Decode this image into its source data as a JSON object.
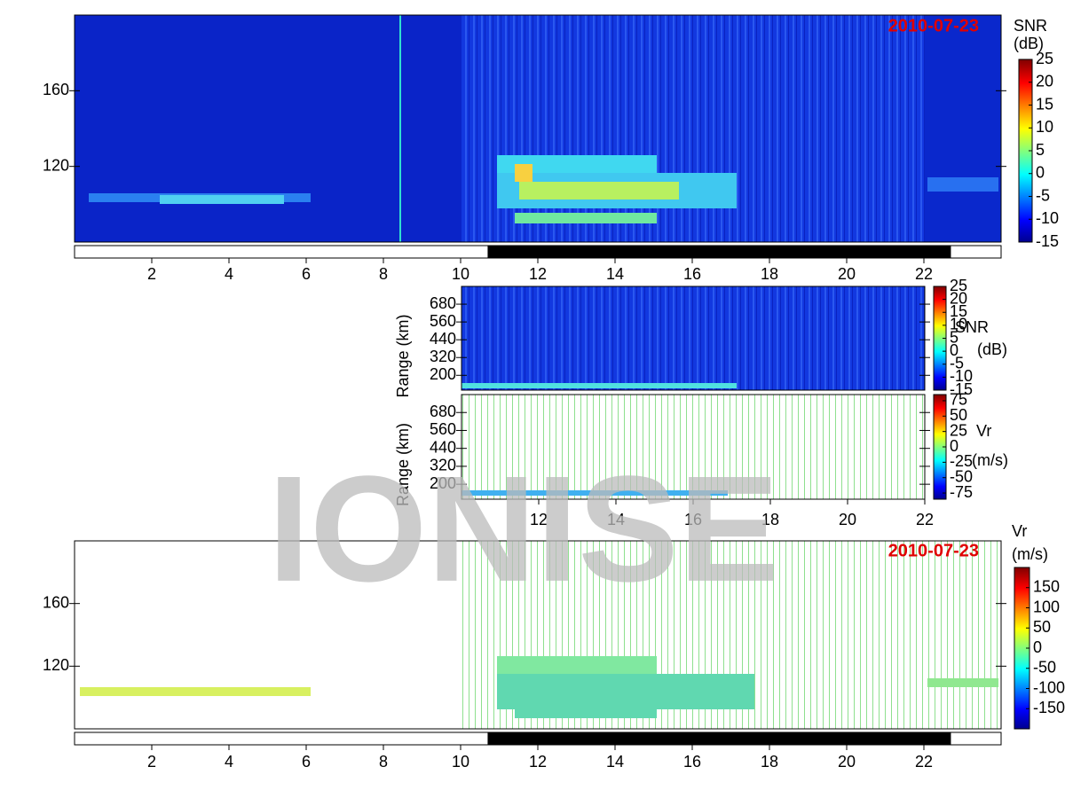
{
  "chart_data": [
    {
      "type": "heatmap",
      "title": "2010-07-23",
      "xlim": [
        0,
        24
      ],
      "xticks": [
        2,
        4,
        6,
        8,
        10,
        12,
        14,
        16,
        18,
        20,
        22
      ],
      "ylim": [
        80,
        200
      ],
      "yticks": [
        120,
        160
      ],
      "night": [
        10.7,
        22.7
      ],
      "colorbar": {
        "label": "SNR",
        "unit": "(dB)",
        "lim": [
          -15,
          25
        ],
        "ticks": [
          25,
          20,
          15,
          10,
          5,
          0,
          -5,
          -10,
          -15
        ]
      }
    },
    {
      "type": "heatmap",
      "xlim": [
        10,
        22
      ],
      "ylim": [
        100,
        800
      ],
      "yticks": [
        200,
        320,
        440,
        560,
        680
      ],
      "ylabel": "Range (km)",
      "colorbar": {
        "label": "SNR",
        "unit": "(dB)",
        "lim": [
          -15,
          25
        ],
        "ticks": [
          25,
          20,
          15,
          10,
          5,
          0,
          -5,
          -10,
          -15
        ]
      }
    },
    {
      "type": "heatmap",
      "xlim": [
        10,
        22
      ],
      "xticks": [
        12,
        14,
        16,
        18,
        20,
        22
      ],
      "ylim": [
        100,
        800
      ],
      "yticks": [
        200,
        320,
        440,
        560,
        680
      ],
      "ylabel": "Range (km)",
      "colorbar": {
        "label": "Vr",
        "unit": "(m/s)",
        "lim": [
          -85,
          85
        ],
        "ticks": [
          75,
          50,
          25,
          0,
          -25,
          -50,
          -75
        ]
      }
    },
    {
      "type": "heatmap",
      "title": "2010-07-23",
      "xlim": [
        0,
        24
      ],
      "xticks": [
        2,
        4,
        6,
        8,
        10,
        12,
        14,
        16,
        18,
        20,
        22
      ],
      "ylim": [
        80,
        200
      ],
      "yticks": [
        120,
        160
      ],
      "night": [
        10.7,
        22.7
      ],
      "colorbar": {
        "label": "Vr",
        "unit": "(m/s)",
        "lim": [
          -200,
          200
        ],
        "ticks": [
          150,
          100,
          50,
          0,
          -50,
          -100,
          -150
        ]
      }
    }
  ],
  "watermark": "IONISE"
}
